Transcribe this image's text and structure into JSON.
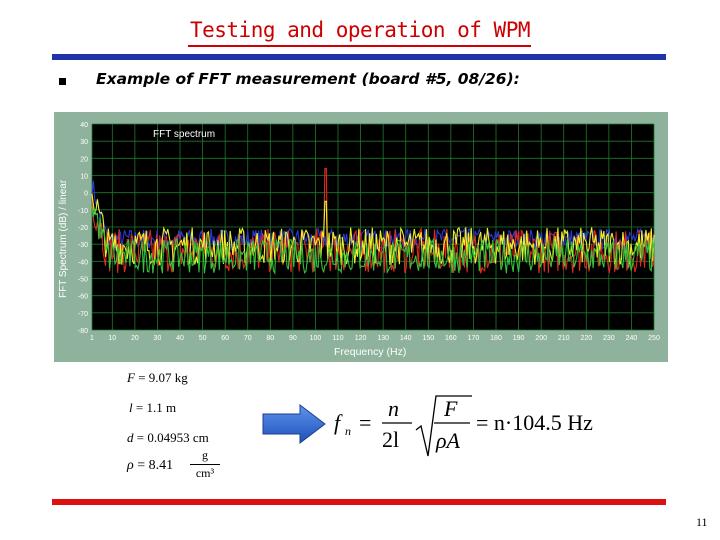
{
  "slide": {
    "title": "Testing and operation of WPM",
    "subtitle": "Example of FFT measurement (board #5, 08/26):",
    "page_number": "11"
  },
  "plot": {
    "inner_label": "FFT spectrum",
    "x_axis_label": "Frequency (Hz)",
    "y_axis_label": "FFT Spectrum (dB) / linear",
    "y_ticks": [
      "40",
      "30",
      "20",
      "10",
      "0",
      "-10",
      "-20",
      "-30",
      "-40",
      "-50",
      "-60",
      "-70",
      "-80"
    ],
    "x_ticks": [
      "1",
      "10",
      "20",
      "30",
      "40",
      "50",
      "60",
      "70",
      "80",
      "90",
      "100",
      "110",
      "120",
      "130",
      "140",
      "150",
      "160",
      "170",
      "180",
      "190",
      "200",
      "210",
      "220",
      "230",
      "240",
      "250"
    ],
    "series_colors": [
      "#2b3ad6",
      "#e02b20",
      "#eef02e",
      "#34c23a"
    ],
    "background_color": "#000000",
    "grid_color": "#1e7a2a"
  },
  "chart_data": {
    "type": "line",
    "title": "FFT spectrum",
    "xlabel": "Frequency (Hz)",
    "ylabel": "FFT Spectrum (dB) / linear",
    "xlim": [
      1,
      250
    ],
    "ylim": [
      -80,
      40
    ],
    "peak": {
      "x": 104.5,
      "y": 14
    }
  },
  "params": {
    "F_label": "F",
    "F_value": " = 9.07 kg",
    "l_label": "l",
    "l_value": " = 1.1 m",
    "d_label": "d",
    "d_value": " = 0.04953 cm",
    "rho_label": "ρ",
    "rho_value": " = 8.41",
    "rho_unit_num": "g",
    "rho_unit_den": "cm³"
  },
  "formula": {
    "lhs": "f",
    "lhs_sub": "n",
    "eq": "=",
    "num": "n",
    "den": "2l",
    "sqrt_num": "F",
    "sqrt_den": "ρA",
    "rhs": "= n·104.5 Hz"
  },
  "arrow_color": "#2f6bd8"
}
